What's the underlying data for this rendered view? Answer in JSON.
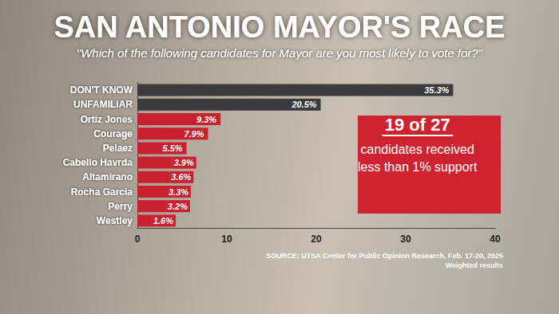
{
  "chart_data": {
    "type": "bar",
    "orientation": "horizontal",
    "title": "SAN ANTONIO MAYOR'S RACE",
    "subtitle": "\"Which of the following candidates for Mayor are you most likely to vote for?\"",
    "categories": [
      "DON'T KNOW",
      "UNFAMILIAR",
      "Ortiz Jones",
      "Courage",
      "Pelaez",
      "Cabello Havrda",
      "Altamirano",
      "Rocha Garcia",
      "Perry",
      "Westley"
    ],
    "values": [
      35.3,
      20.5,
      9.3,
      7.9,
      5.5,
      3.9,
      3.6,
      3.3,
      3.2,
      1.6
    ],
    "value_labels": [
      "35.3%",
      "20.5%",
      "9.3%",
      "7.9%",
      "5.5%",
      "3.9%",
      "3.6%",
      "3.3%",
      "3.2%",
      "1.6%"
    ],
    "colors": [
      "#3b3b3d",
      "#3b3b3d",
      "#c8202f",
      "#c8202f",
      "#c8202f",
      "#c8202f",
      "#c8202f",
      "#c8202f",
      "#c8202f",
      "#c8202f"
    ],
    "xlim": [
      0,
      40
    ],
    "xticks": [
      0,
      10,
      20,
      30,
      40
    ],
    "data_labels": true,
    "grid": false,
    "annotation": {
      "title": "19 of 27",
      "lines": [
        "candidates received",
        "less than 1% support"
      ]
    },
    "source": "SOURCE: UTSA Center for Public Opinion Research, Feb. 17-20, 2025",
    "note": "Weighted results"
  }
}
